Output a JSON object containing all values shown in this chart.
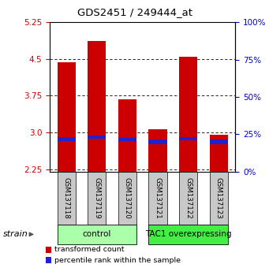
{
  "title": "GDS2451 / 249444_at",
  "samples": [
    "GSM137118",
    "GSM137119",
    "GSM137120",
    "GSM137121",
    "GSM137122",
    "GSM137123"
  ],
  "red_values": [
    4.43,
    4.87,
    3.67,
    3.07,
    4.55,
    2.95
  ],
  "blue_base": [
    2.83,
    2.87,
    2.82,
    2.76,
    2.84,
    2.76
  ],
  "blue_height": [
    0.07,
    0.07,
    0.07,
    0.1,
    0.07,
    0.1
  ],
  "bar_bottom": 2.2,
  "ylim": [
    2.2,
    5.25
  ],
  "yticks_left": [
    2.25,
    3.0,
    3.75,
    4.5,
    5.25
  ],
  "yticks_right": [
    0,
    25,
    50,
    75,
    100
  ],
  "groups": [
    {
      "label": "control",
      "indices": [
        0,
        1,
        2
      ],
      "color": "#aaffaa"
    },
    {
      "label": "TAC1 overexpressing",
      "indices": [
        3,
        4,
        5
      ],
      "color": "#44ee44"
    }
  ],
  "strain_label": "strain",
  "legend": [
    {
      "color": "#cc0000",
      "label": "transformed count"
    },
    {
      "color": "#2222cc",
      "label": "percentile rank within the sample"
    }
  ],
  "bar_color": "#cc0000",
  "blue_color": "#2222cc",
  "tick_label_color_left": "#cc0000",
  "tick_label_color_right": "#0000cc",
  "grid_color": "#000000",
  "bar_width": 0.6,
  "sample_box_color": "#c8c8c8"
}
